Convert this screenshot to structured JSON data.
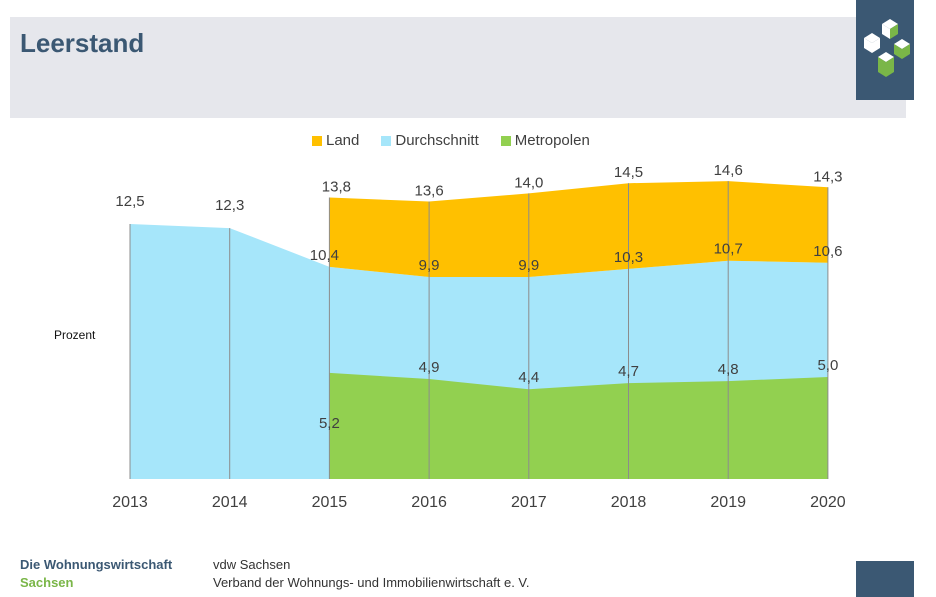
{
  "header": {
    "title": "Leerstand"
  },
  "logo": {
    "icon": "cube-logo-icon",
    "bg": "#3b5873"
  },
  "footer": {
    "org_line1": "Die Wohnungswirtschaft",
    "org_line2": "Sachsen",
    "desc_line1": "vdw Sachsen",
    "desc_line2": "Verband der Wohnungs- und Immobilienwirtschaft e. V."
  },
  "chart_data": {
    "type": "area",
    "title": "",
    "xlabel": "",
    "ylabel": "Prozent",
    "categories": [
      "2013",
      "2014",
      "2015",
      "2016",
      "2017",
      "2018",
      "2019",
      "2020"
    ],
    "series": [
      {
        "name": "Land",
        "color": "#ffc000",
        "values": [
          null,
          null,
          13.8,
          13.6,
          14.0,
          14.5,
          14.6,
          14.3
        ],
        "labels": [
          "",
          "",
          "13,8",
          "13,6",
          "14,0",
          "14,5",
          "14,6",
          "14,3"
        ]
      },
      {
        "name": "Durchschnitt",
        "color": "#a6e6fa",
        "values": [
          12.5,
          12.3,
          10.4,
          9.9,
          9.9,
          10.3,
          10.7,
          10.6
        ],
        "labels": [
          "12,5",
          "12,3",
          "10,4",
          "9,9",
          "9,9",
          "10,3",
          "10,7",
          "10,6"
        ]
      },
      {
        "name": "Metropolen",
        "color": "#92d050",
        "values": [
          null,
          null,
          5.2,
          4.9,
          4.4,
          4.7,
          4.8,
          5.0
        ],
        "labels": [
          "",
          "",
          "5,2",
          "4,9",
          "4,4",
          "4,7",
          "4,8",
          "5,0"
        ]
      }
    ],
    "ylim": [
      0,
      15
    ],
    "grid": false,
    "legend": "top"
  }
}
